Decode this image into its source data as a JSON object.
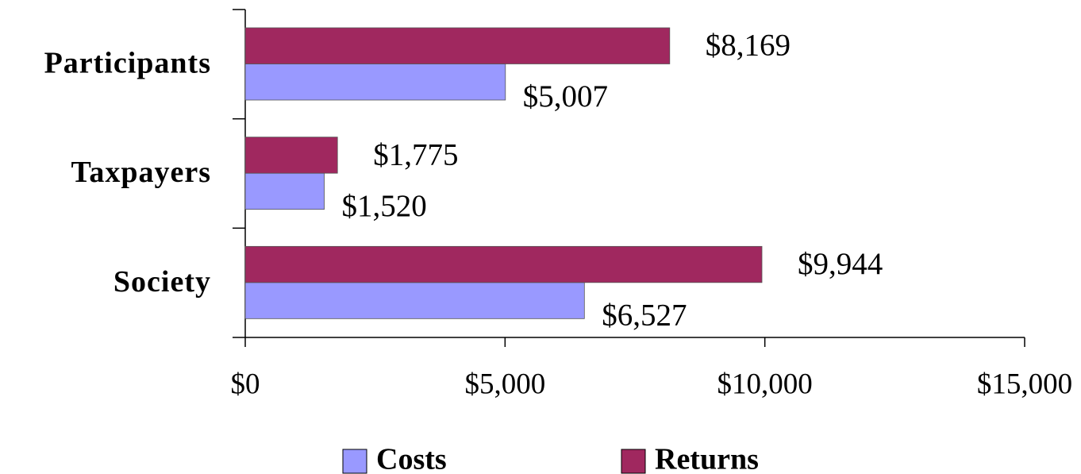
{
  "chart_data": {
    "type": "hbar",
    "categories": [
      "Participants",
      "Taxpayers",
      "Society"
    ],
    "series": [
      {
        "name": "Costs",
        "color": "#9999ff",
        "values": [
          5007,
          1520,
          6527
        ],
        "value_labels": [
          "$5,007",
          "$1,520",
          "$6,527"
        ]
      },
      {
        "name": "Returns",
        "color": "#a0285f",
        "values": [
          8169,
          1775,
          9944
        ],
        "value_labels": [
          "$8,169",
          "$1,775",
          "$9,944"
        ]
      }
    ],
    "xlim": [
      0,
      15000
    ],
    "xticks": [
      {
        "value": 0,
        "label": "$0"
      },
      {
        "value": 5000,
        "label": "$5,000"
      },
      {
        "value": 10000,
        "label": "$10,000"
      },
      {
        "value": 15000,
        "label": "$15,000"
      }
    ],
    "legend": "bottom"
  }
}
